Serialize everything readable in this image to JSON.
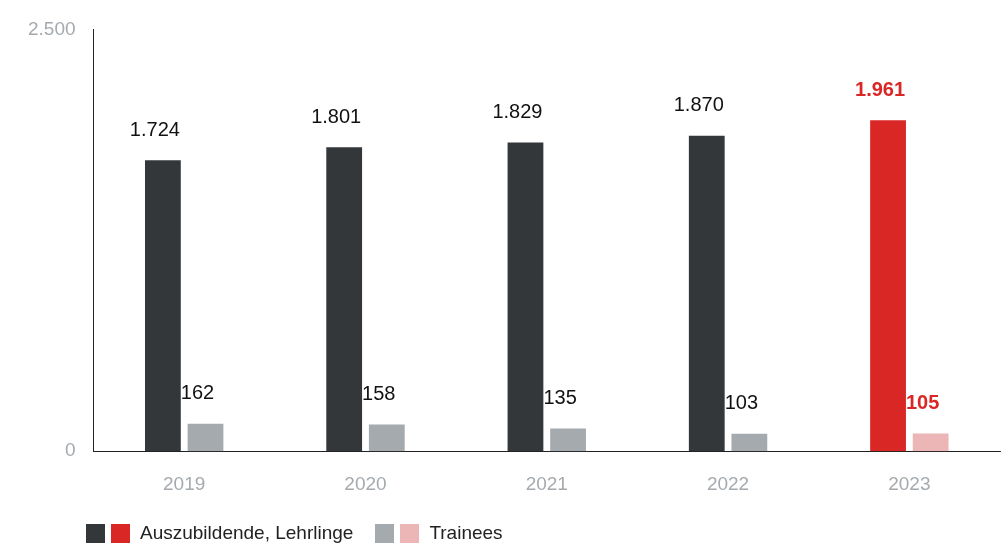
{
  "chart_data": {
    "type": "bar",
    "categories": [
      "2019",
      "2020",
      "2021",
      "2022",
      "2023"
    ],
    "series": [
      {
        "name": "Auszubildende, Lehrlinge",
        "color": "#343739",
        "colors": [
          "#343739",
          "#343739",
          "#343739",
          "#343739",
          "#d92725"
        ],
        "values": [
          1724,
          1801,
          1829,
          1870,
          1961
        ],
        "value_labels": [
          "1.724",
          "1.801",
          "1.829",
          "1.870",
          "1.961"
        ]
      },
      {
        "name": "Trainees",
        "color": "#a5aaae",
        "colors": [
          "#a5aaae",
          "#a5aaae",
          "#a5aaae",
          "#a5aaae",
          "#ebb6b5"
        ],
        "values": [
          162,
          158,
          135,
          103,
          105
        ],
        "value_labels": [
          "162",
          "158",
          "135",
          "103",
          "105"
        ]
      }
    ],
    "ylim": [
      0,
      2500
    ],
    "yticks": [
      0,
      {
        "value": 2500,
        "label": "2.500"
      }
    ],
    "grid": false,
    "legend": "bottom"
  }
}
